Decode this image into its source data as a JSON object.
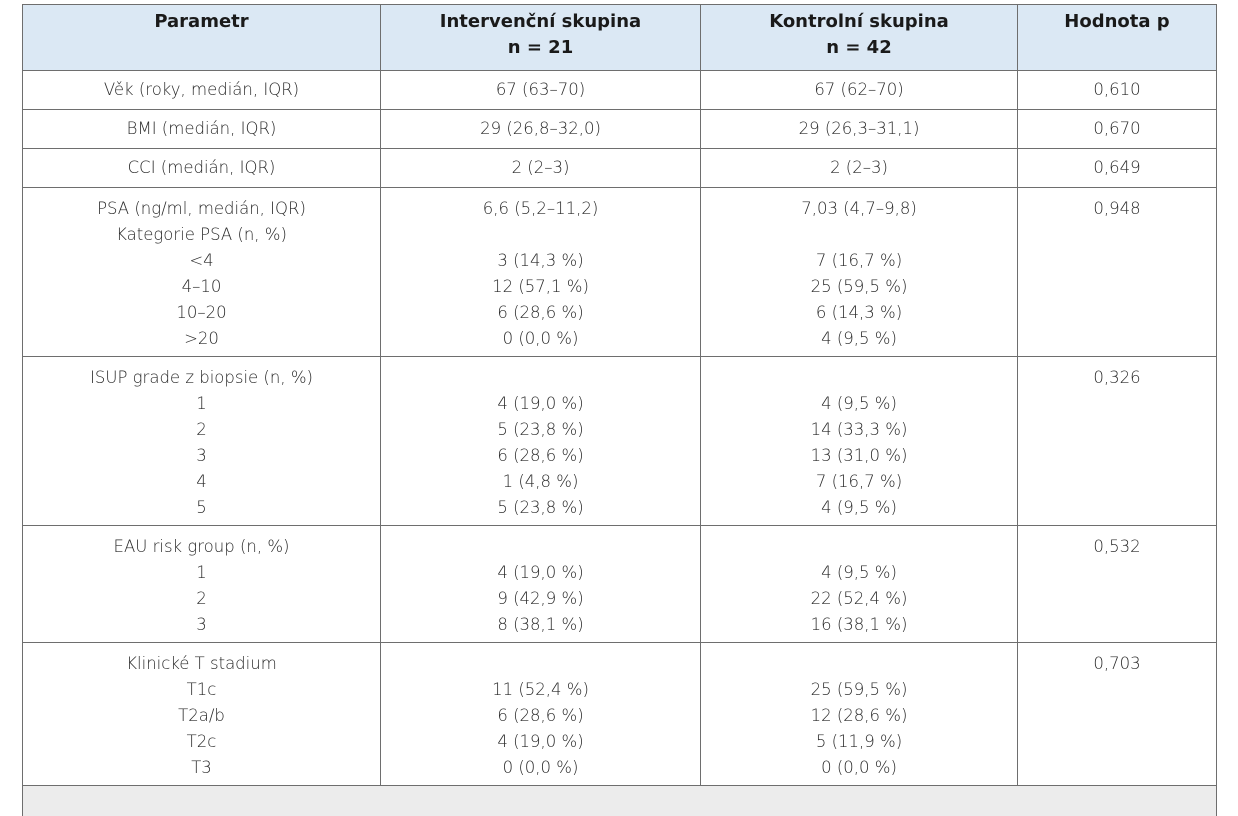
{
  "header": {
    "param": "Parametr",
    "intervention": "Intervenční skupina",
    "intervention_n": "n = 21",
    "control": "Kontrolní skupina",
    "control_n": "n = 42",
    "pvalue": "Hodnota p"
  },
  "rows": {
    "age": {
      "label": "Věk (roky, medián, IQR)",
      "intervention": "67 (63–70)",
      "control": "67 (62–70)",
      "p": "0,610"
    },
    "bmi": {
      "label": "BMI (medián, IQR)",
      "intervention": "29 (26,8–32,0)",
      "control": "29 (26,3–31,1)",
      "p": "0,670"
    },
    "cci": {
      "label": "CCI (medián, IQR)",
      "intervention": "2 (2–3)",
      "control": "2 (2–3)",
      "p": "0,649"
    },
    "psa": {
      "label": "PSA (ng/ml, medián, IQR)",
      "intervention": "6,6 (5,2–11,2)",
      "control": "7,03 (4,7–9,8)",
      "p": "0,948",
      "cat_label": "Kategorie PSA (n, %)",
      "cats": [
        {
          "label": "<4",
          "intervention": "3 (14,3 %)",
          "control": "7 (16,7 %)"
        },
        {
          "label": "4–10",
          "intervention": "12 (57,1 %)",
          "control": "25 (59,5 %)"
        },
        {
          "label": "10–20",
          "intervention": "6 (28,6 %)",
          "control": "6 (14,3 %)"
        },
        {
          "label": ">20",
          "intervention": "0 (0,0 %)",
          "control": "4 (9,5 %)"
        }
      ]
    },
    "isup": {
      "label": "ISUP grade z biopsie (n, %)",
      "p": "0,326",
      "cats": [
        {
          "label": "1",
          "intervention": "4 (19,0 %)",
          "control": "4 (9,5 %)"
        },
        {
          "label": "2",
          "intervention": "5 (23,8 %)",
          "control": "14 (33,3 %)"
        },
        {
          "label": "3",
          "intervention": "6 (28,6 %)",
          "control": "13 (31,0 %)"
        },
        {
          "label": "4",
          "intervention": "1 (4,8 %)",
          "control": "7 (16,7 %)"
        },
        {
          "label": "5",
          "intervention": "5 (23,8 %)",
          "control": "4 (9,5 %)"
        }
      ]
    },
    "eau": {
      "label": "EAU risk group (n, %)",
      "p": "0,532",
      "cats": [
        {
          "label": "1",
          "intervention": "4 (19,0 %)",
          "control": "4 (9,5 %)"
        },
        {
          "label": "2",
          "intervention": "9 (42,9 %)",
          "control": "22 (52,4 %)"
        },
        {
          "label": "3",
          "intervention": "8 (38,1 %)",
          "control": "16 (38,1 %)"
        }
      ]
    },
    "tstage": {
      "label": "Klinické T stadium",
      "p": "0,703",
      "cats": [
        {
          "label": "T1c",
          "intervention": "11 (52,4 %)",
          "control": "25 (59,5 %)"
        },
        {
          "label": "T2a/b",
          "intervention": "6 (28,6 %)",
          "control": "12 (28,6 %)"
        },
        {
          "label": "T2c",
          "intervention": "4 (19,0 %)",
          "control": "5 (11,9 %)"
        },
        {
          "label": "T3",
          "intervention": "0 (0,0 %)",
          "control": "0 (0,0 %)"
        }
      ]
    }
  },
  "colors": {
    "header_bg": "#dbe8f4",
    "footer_bg": "#ececec",
    "border": "#6e6e6e"
  }
}
